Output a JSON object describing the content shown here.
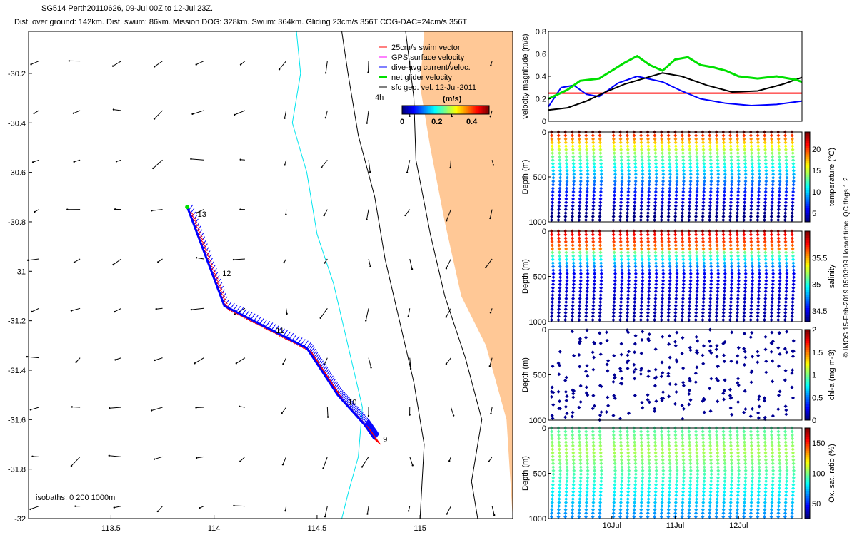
{
  "header": {
    "title_line1": "SG514 Perth20110626, 09-Jul 00Z to 12-Jul 23Z.",
    "title_line2": "Dist. over ground: 142km. Dist. swum: 86km. Mission DOG: 328km. Swum: 364km. Gliding 23cm/s 356T COG-DAC=24cm/s 356T"
  },
  "side_credit": "© IMOS 15-Feb-2019 05:03:09 Hobart time. QC flags 1  2",
  "colors": {
    "land": "#ffc896",
    "isobath_shallow": "#00e5ee",
    "coast": "#000000",
    "swim": "#ff0000",
    "gps": "#ff00ff",
    "dac": "#0000ff",
    "net": "#00e000",
    "sfc": "#000000"
  },
  "chart_data": [
    {
      "id": "map",
      "type": "scatter",
      "xlim": [
        113.1,
        115.45
      ],
      "ylim": [
        -32,
        -30.03
      ],
      "x_ticks": [
        113.5,
        114,
        114.5,
        115
      ],
      "x_tick_labels": [
        "113.5",
        "114",
        "114.5",
        "115"
      ],
      "y_ticks": [
        -30.2,
        -30.4,
        -30.6,
        -30.8,
        -31,
        -31.2,
        -31.4,
        -31.6,
        -31.8,
        -32
      ],
      "y_tick_labels": [
        "-30.2",
        "-30.4",
        "-30.6",
        "-30.8",
        "-31",
        "-31.2",
        "-31.4",
        "-31.6",
        "-31.8",
        "-32"
      ],
      "legend": {
        "entries": [
          "25cm/s swim vector",
          "GPS surface velocity",
          "dive-avg current veloc.",
          "net glider velocity",
          "sfc geo. vel. 12-Jul-2011"
        ],
        "extra_label": "4h",
        "colorbar_unit": "(m/s)",
        "colorbar_ticks": [
          0,
          0.2,
          0.4
        ],
        "colorbar_tick_labels": [
          "0",
          "0.2",
          "0.4"
        ],
        "colorbar_range": [
          0,
          0.5
        ]
      },
      "isobath_label": "isobaths: 0   200  1000m",
      "track": [
        [
          114.78,
          -31.68
        ],
        [
          114.73,
          -31.62
        ],
        [
          114.6,
          -31.5
        ],
        [
          114.45,
          -31.31
        ],
        [
          114.05,
          -31.14
        ],
        [
          113.87,
          -30.74
        ]
      ],
      "day_labels": [
        {
          "text": "9",
          "lon": 114.82,
          "lat": -31.69
        },
        {
          "text": "10",
          "lon": 114.65,
          "lat": -31.54
        },
        {
          "text": "11",
          "lon": 114.3,
          "lat": -31.25
        },
        {
          "text": "12",
          "lon": 114.04,
          "lat": -31.02
        },
        {
          "text": "13",
          "lon": 113.92,
          "lat": -30.78
        }
      ]
    },
    {
      "id": "velocity",
      "type": "line",
      "ylabel": "velocity magnitude (m/s)",
      "xlim": [
        9.0,
        13.0
      ],
      "ylim": [
        0,
        0.8
      ],
      "y_ticks": [
        0,
        0.2,
        0.4,
        0.6,
        0.8
      ],
      "y_tick_labels": [
        "0",
        "0.2",
        "0.4",
        "0.6",
        "0.8"
      ],
      "x_ticks": [
        10,
        11,
        12
      ],
      "x_tick_labels": [
        "10Jul",
        "11Jul",
        "12Jul"
      ],
      "series": [
        {
          "color": "#ff0000",
          "x": [
            9.0,
            13.0
          ],
          "y": [
            0.25,
            0.25
          ]
        },
        {
          "color": "#0000ff",
          "x": [
            9.0,
            9.2,
            9.4,
            9.6,
            9.8,
            10.1,
            10.4,
            10.8,
            11.1,
            11.4,
            11.8,
            12.2,
            12.6,
            13.0
          ],
          "y": [
            0.13,
            0.3,
            0.32,
            0.24,
            0.22,
            0.34,
            0.4,
            0.35,
            0.27,
            0.2,
            0.16,
            0.14,
            0.15,
            0.18
          ]
        },
        {
          "color": "#000000",
          "x": [
            9.0,
            9.3,
            9.6,
            9.9,
            10.2,
            10.5,
            10.8,
            11.1,
            11.5,
            11.9,
            12.3,
            12.7,
            13.0
          ],
          "y": [
            0.1,
            0.12,
            0.18,
            0.26,
            0.33,
            0.38,
            0.43,
            0.4,
            0.32,
            0.26,
            0.27,
            0.33,
            0.39
          ]
        },
        {
          "color": "#00e000",
          "x": [
            9.0,
            9.3,
            9.5,
            9.8,
            10.0,
            10.2,
            10.4,
            10.6,
            10.8,
            11.0,
            11.2,
            11.4,
            11.6,
            11.8,
            12.0,
            12.3,
            12.6,
            12.9,
            13.0
          ],
          "y": [
            0.2,
            0.28,
            0.36,
            0.38,
            0.45,
            0.52,
            0.58,
            0.5,
            0.45,
            0.55,
            0.57,
            0.5,
            0.48,
            0.45,
            0.4,
            0.38,
            0.4,
            0.37,
            0.35
          ]
        }
      ]
    },
    {
      "id": "temperature",
      "type": "scatter",
      "ylabel": "Depth (m)",
      "clabel": "temperature (°C)",
      "xlim": [
        9.0,
        13.0
      ],
      "ylim": [
        1000,
        0
      ],
      "y_ticks": [
        0,
        500,
        1000
      ],
      "y_tick_labels": [
        "0",
        "500",
        "1000"
      ],
      "cbar_range": [
        3,
        24
      ],
      "cbar_ticks": [
        5,
        10,
        15,
        20
      ],
      "cbar_tick_labels": [
        "5",
        "10",
        "15",
        "20"
      ]
    },
    {
      "id": "salinity",
      "type": "scatter",
      "ylabel": "Depth (m)",
      "clabel": "salinity",
      "xlim": [
        9.0,
        13.0
      ],
      "ylim": [
        1000,
        0
      ],
      "y_ticks": [
        0,
        500,
        1000
      ],
      "y_tick_labels": [
        "0",
        "500",
        "1000"
      ],
      "cbar_range": [
        34.3,
        36.0
      ],
      "cbar_ticks": [
        34.5,
        35,
        35.5
      ],
      "cbar_tick_labels": [
        "34.5",
        "35",
        "35.5"
      ]
    },
    {
      "id": "chla",
      "type": "scatter",
      "ylabel": "Depth (m)",
      "clabel": "chl-a (mg m-3)",
      "xlim": [
        9.0,
        13.0
      ],
      "ylim": [
        1000,
        0
      ],
      "y_ticks": [
        0,
        500,
        1000
      ],
      "y_tick_labels": [
        "0",
        "500",
        "1000"
      ],
      "cbar_range": [
        0,
        2
      ],
      "cbar_ticks": [
        0,
        0.5,
        1,
        1.5,
        2
      ],
      "cbar_tick_labels": [
        "0",
        "0.5",
        "1",
        "1.5",
        "2"
      ]
    },
    {
      "id": "oxygen",
      "type": "scatter",
      "ylabel": "Depth (m)",
      "clabel": "Ox. sat. ratio (%)",
      "xlim": [
        9.0,
        13.0
      ],
      "ylim": [
        1000,
        0
      ],
      "y_ticks": [
        0,
        500,
        1000
      ],
      "y_tick_labels": [
        "0",
        "500",
        "1000"
      ],
      "x_ticks": [
        10,
        11,
        12
      ],
      "x_tick_labels": [
        "10Jul",
        "11Jul",
        "12Jul"
      ],
      "cbar_range": [
        25,
        175
      ],
      "cbar_ticks": [
        50,
        100,
        150
      ],
      "cbar_tick_labels": [
        "50",
        "100",
        "150"
      ]
    }
  ]
}
